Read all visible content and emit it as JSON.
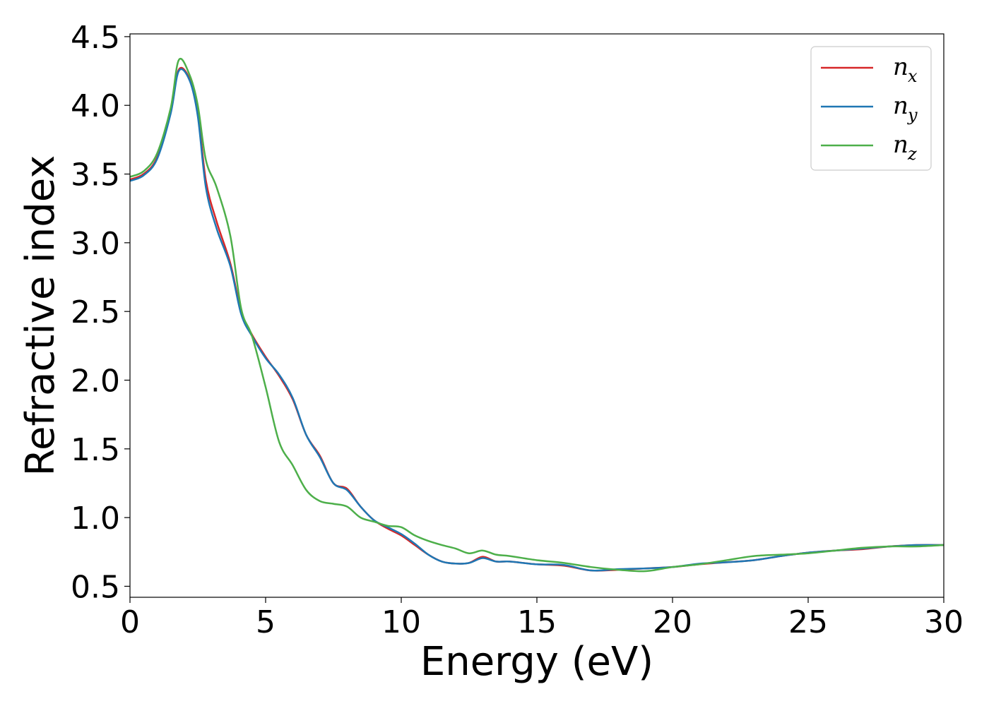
{
  "chart_data": {
    "type": "line",
    "xlabel": "Energy (eV)",
    "ylabel": "Refractive index",
    "xlim": [
      0,
      30
    ],
    "ylim": [
      0.42,
      4.52
    ],
    "xticks": [
      "0",
      "5",
      "10",
      "15",
      "20",
      "25",
      "30"
    ],
    "yticks": [
      "0.5",
      "1.0",
      "1.5",
      "2.0",
      "2.5",
      "3.0",
      "3.5",
      "4.0",
      "4.5"
    ],
    "grid": false,
    "legend_position": "top-right",
    "series": [
      {
        "name": "n",
        "subscript": "x",
        "color": "#d62728",
        "points": [
          [
            0,
            3.46
          ],
          [
            0.5,
            3.5
          ],
          [
            1,
            3.62
          ],
          [
            1.5,
            3.95
          ],
          [
            1.8,
            4.26
          ],
          [
            2.2,
            4.19
          ],
          [
            2.5,
            3.95
          ],
          [
            2.8,
            3.45
          ],
          [
            3.2,
            3.15
          ],
          [
            3.7,
            2.85
          ],
          [
            4.1,
            2.5
          ],
          [
            4.5,
            2.33
          ],
          [
            5,
            2.17
          ],
          [
            5.5,
            2.03
          ],
          [
            6,
            1.86
          ],
          [
            6.5,
            1.6
          ],
          [
            7,
            1.45
          ],
          [
            7.5,
            1.25
          ],
          [
            8,
            1.21
          ],
          [
            8.5,
            1.08
          ],
          [
            9,
            0.98
          ],
          [
            9.5,
            0.92
          ],
          [
            10,
            0.87
          ],
          [
            10.5,
            0.8
          ],
          [
            11,
            0.73
          ],
          [
            11.5,
            0.68
          ],
          [
            12,
            0.665
          ],
          [
            12.5,
            0.67
          ],
          [
            13,
            0.715
          ],
          [
            13.5,
            0.68
          ],
          [
            14,
            0.68
          ],
          [
            15,
            0.66
          ],
          [
            16,
            0.65
          ],
          [
            17,
            0.615
          ],
          [
            18,
            0.62
          ],
          [
            19,
            0.63
          ],
          [
            20,
            0.64
          ],
          [
            21,
            0.66
          ],
          [
            22,
            0.675
          ],
          [
            23,
            0.69
          ],
          [
            24,
            0.72
          ],
          [
            25,
            0.745
          ],
          [
            26,
            0.76
          ],
          [
            27,
            0.77
          ],
          [
            28,
            0.79
          ],
          [
            29,
            0.8
          ],
          [
            30,
            0.8
          ]
        ]
      },
      {
        "name": "n",
        "subscript": "y",
        "color": "#1f77b4",
        "points": [
          [
            0,
            3.45
          ],
          [
            0.5,
            3.49
          ],
          [
            1,
            3.61
          ],
          [
            1.5,
            3.94
          ],
          [
            1.8,
            4.25
          ],
          [
            2.2,
            4.18
          ],
          [
            2.5,
            3.92
          ],
          [
            2.8,
            3.4
          ],
          [
            3.2,
            3.1
          ],
          [
            3.7,
            2.83
          ],
          [
            4.1,
            2.48
          ],
          [
            4.5,
            2.32
          ],
          [
            5,
            2.16
          ],
          [
            5.5,
            2.04
          ],
          [
            6,
            1.87
          ],
          [
            6.5,
            1.6
          ],
          [
            7,
            1.44
          ],
          [
            7.5,
            1.25
          ],
          [
            8,
            1.2
          ],
          [
            8.5,
            1.08
          ],
          [
            9,
            0.98
          ],
          [
            9.5,
            0.93
          ],
          [
            10,
            0.88
          ],
          [
            10.5,
            0.81
          ],
          [
            11,
            0.73
          ],
          [
            11.5,
            0.68
          ],
          [
            12,
            0.665
          ],
          [
            12.5,
            0.67
          ],
          [
            13,
            0.705
          ],
          [
            13.5,
            0.68
          ],
          [
            14,
            0.68
          ],
          [
            15,
            0.66
          ],
          [
            16,
            0.655
          ],
          [
            17,
            0.615
          ],
          [
            18,
            0.625
          ],
          [
            19,
            0.63
          ],
          [
            20,
            0.64
          ],
          [
            21,
            0.665
          ],
          [
            22,
            0.675
          ],
          [
            23,
            0.69
          ],
          [
            24,
            0.72
          ],
          [
            25,
            0.745
          ],
          [
            26,
            0.76
          ],
          [
            27,
            0.775
          ],
          [
            28,
            0.79
          ],
          [
            29,
            0.8
          ],
          [
            30,
            0.8
          ]
        ]
      },
      {
        "name": "n",
        "subscript": "z",
        "color": "#4daf4a",
        "points": [
          [
            0,
            3.48
          ],
          [
            0.5,
            3.52
          ],
          [
            1,
            3.65
          ],
          [
            1.5,
            3.98
          ],
          [
            1.8,
            4.33
          ],
          [
            2.2,
            4.22
          ],
          [
            2.5,
            4.0
          ],
          [
            2.8,
            3.6
          ],
          [
            3.2,
            3.4
          ],
          [
            3.7,
            3.05
          ],
          [
            4.1,
            2.52
          ],
          [
            4.5,
            2.32
          ],
          [
            5,
            1.95
          ],
          [
            5.5,
            1.55
          ],
          [
            6,
            1.38
          ],
          [
            6.5,
            1.2
          ],
          [
            7,
            1.12
          ],
          [
            7.5,
            1.1
          ],
          [
            8,
            1.08
          ],
          [
            8.5,
            1.0
          ],
          [
            9,
            0.97
          ],
          [
            9.5,
            0.94
          ],
          [
            10,
            0.93
          ],
          [
            10.5,
            0.87
          ],
          [
            11,
            0.83
          ],
          [
            11.5,
            0.8
          ],
          [
            12,
            0.775
          ],
          [
            12.5,
            0.74
          ],
          [
            13,
            0.76
          ],
          [
            13.5,
            0.73
          ],
          [
            14,
            0.72
          ],
          [
            15,
            0.69
          ],
          [
            16,
            0.67
          ],
          [
            17,
            0.64
          ],
          [
            18,
            0.62
          ],
          [
            19,
            0.61
          ],
          [
            20,
            0.64
          ],
          [
            21,
            0.66
          ],
          [
            22,
            0.69
          ],
          [
            23,
            0.72
          ],
          [
            24,
            0.73
          ],
          [
            25,
            0.74
          ],
          [
            26,
            0.76
          ],
          [
            27,
            0.78
          ],
          [
            28,
            0.79
          ],
          [
            29,
            0.79
          ],
          [
            30,
            0.8
          ]
        ]
      }
    ]
  }
}
